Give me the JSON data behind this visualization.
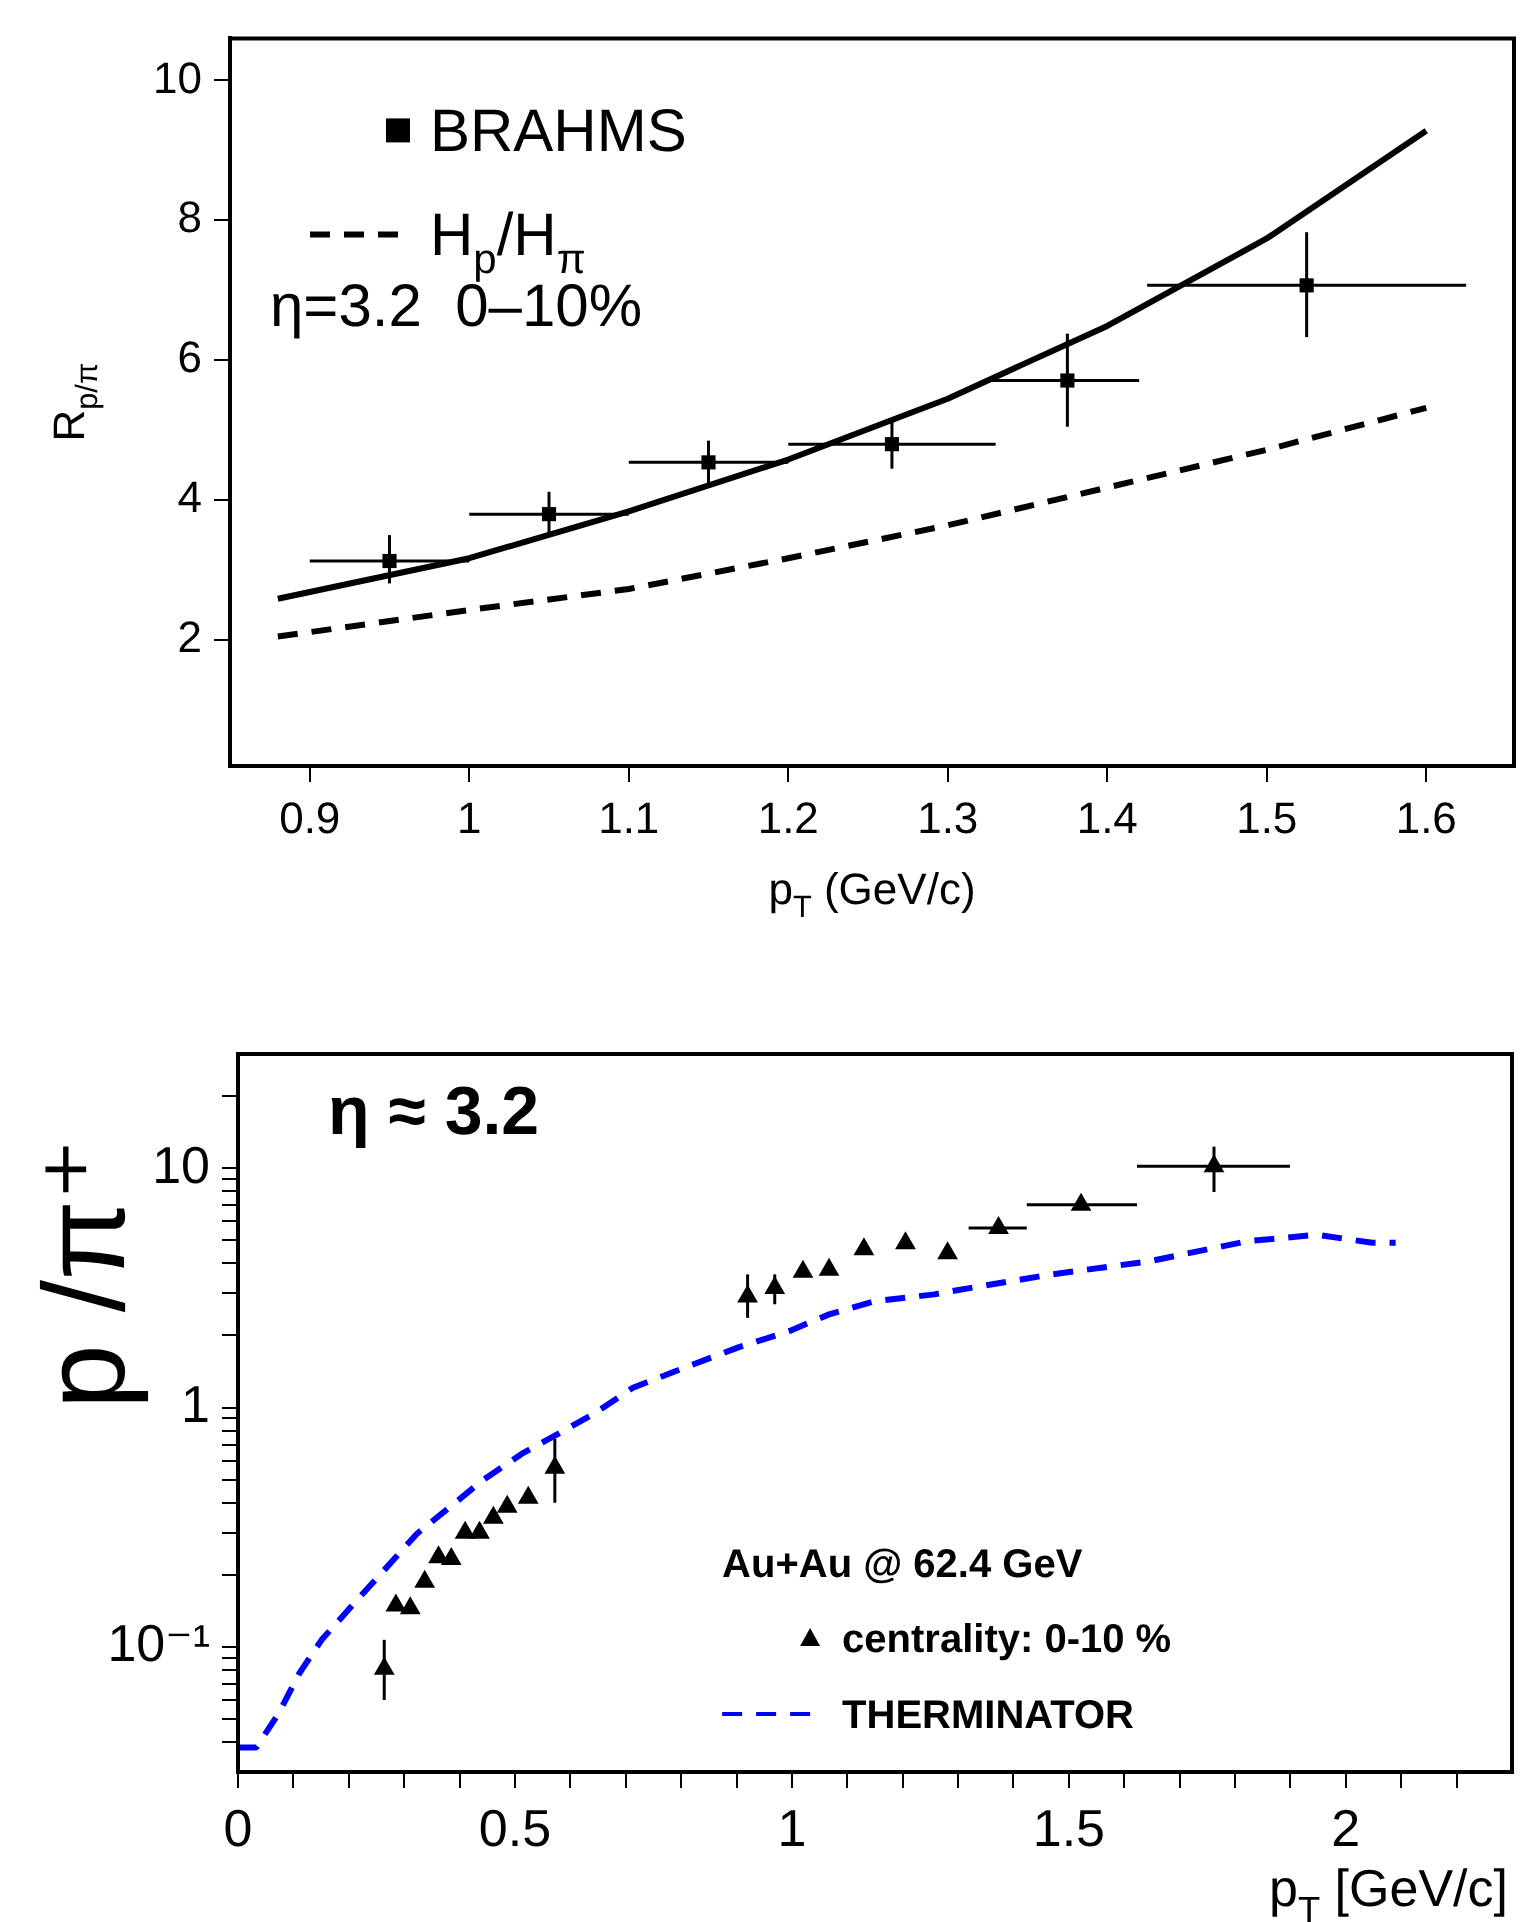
{
  "chart_data": [
    {
      "type": "scatter",
      "xlabel": "p$_{T}$ (GeV/c)",
      "ylabel": "R$_{p/π}$",
      "xlim": [
        0.85,
        1.655
      ],
      "ylim": [
        0.2,
        10.6
      ],
      "xticks": [
        0.9,
        1,
        1.1,
        1.2,
        1.3,
        1.4,
        1.5,
        1.6
      ],
      "yticks": [
        2,
        4,
        6,
        8,
        10
      ],
      "legend": "top left",
      "annotations": [
        "η=3.2  0–10%"
      ],
      "series": [
        {
          "name": "BRAHMS",
          "marker": "square",
          "color": "#000000",
          "x": [
            0.95,
            1.05,
            1.15,
            1.265,
            1.375,
            1.525
          ],
          "values": [
            3.13,
            3.8,
            4.54,
            4.8,
            5.71,
            7.07
          ],
          "errors": [
            [
              2.81,
              3.5
            ],
            [
              3.5,
              4.12
            ],
            [
              4.23,
              4.85
            ],
            [
              4.45,
              5.12
            ],
            [
              5.05,
              6.38
            ],
            [
              6.33,
              7.83
            ]
          ],
          "xerrors": [
            [
              0.9,
              1.0
            ],
            [
              1.0,
              1.1
            ],
            [
              1.1,
              1.2
            ],
            [
              1.2,
              1.33
            ],
            [
              1.325,
              1.42
            ],
            [
              1.425,
              1.625
            ]
          ]
        },
        {
          "type": "line",
          "marker": "none",
          "line_style": "solid",
          "color": "#000000",
          "x": [
            0.88,
            1.0,
            1.1,
            1.2,
            1.3,
            1.4,
            1.5,
            1.6
          ],
          "values": [
            2.59,
            3.17,
            3.84,
            4.58,
            5.45,
            6.49,
            7.74,
            9.28
          ]
        },
        {
          "name": "H$_{p}$/H$_{π}$",
          "type": "line",
          "marker": "none",
          "line_style": "dashed",
          "color": "#000000",
          "x": [
            0.88,
            1.0,
            1.1,
            1.2,
            1.3,
            1.4,
            1.5,
            1.6
          ],
          "values": [
            2.05,
            2.43,
            2.73,
            3.17,
            3.64,
            4.18,
            4.72,
            5.32
          ]
        }
      ]
    },
    {
      "type": "scatter",
      "xlabel": "p$_{T}$ [GeV/c]",
      "ylabel": "p /π⁺",
      "log": "y",
      "xlim": [
        0,
        2.3
      ],
      "ylim": [
        0.03,
        30
      ],
      "xticks": [
        0,
        {
          "value": 0.1,
          "label": null
        },
        {
          "value": 0.2,
          "label": null
        },
        {
          "value": 0.3,
          "label": null
        },
        {
          "value": 0.4,
          "label": null
        },
        0.5,
        {
          "value": 0.6,
          "label": null
        },
        {
          "value": 0.7,
          "label": null
        },
        {
          "value": 0.8,
          "label": null
        },
        {
          "value": 0.9,
          "label": null
        },
        1,
        {
          "value": 1.1,
          "label": null
        },
        {
          "value": 1.2,
          "label": null
        },
        {
          "value": 1.3,
          "label": null
        },
        {
          "value": 1.4,
          "label": null
        },
        1.5,
        {
          "value": 1.6,
          "label": null
        },
        {
          "value": 1.7,
          "label": null
        },
        {
          "value": 1.8,
          "label": null
        },
        {
          "value": 1.9,
          "label": null
        },
        2,
        {
          "value": 2.1,
          "label": null
        },
        {
          "value": 2.2,
          "label": null
        }
      ],
      "yticks": [
        {
          "value": 0.04,
          "label": null
        },
        {
          "value": 0.05,
          "label": null
        },
        {
          "value": 0.06,
          "label": null
        },
        {
          "value": 0.07,
          "label": null
        },
        {
          "value": 0.08,
          "label": null
        },
        {
          "value": 0.09,
          "label": null
        },
        {
          "value": 0.1,
          "label": "10⁻¹"
        },
        {
          "value": 0.2,
          "label": null
        },
        {
          "value": 0.3,
          "label": null
        },
        {
          "value": 0.4,
          "label": null
        },
        {
          "value": 0.5,
          "label": null
        },
        {
          "value": 0.6,
          "label": null
        },
        {
          "value": 0.7,
          "label": null
        },
        {
          "value": 0.8,
          "label": null
        },
        {
          "value": 0.9,
          "label": null
        },
        1,
        {
          "value": 2,
          "label": null
        },
        {
          "value": 3,
          "label": null
        },
        {
          "value": 4,
          "label": null
        },
        {
          "value": 5,
          "label": null
        },
        {
          "value": 6,
          "label": null
        },
        {
          "value": 7,
          "label": null
        },
        {
          "value": 8,
          "label": null
        },
        {
          "value": 9,
          "label": null
        },
        10,
        {
          "value": 20,
          "label": null
        }
      ],
      "legend": "bottom right",
      "legend_title": "Au+Au @ 62.4 GeV",
      "annotations": [
        "η ≈ 3.2"
      ],
      "series": [
        {
          "name": "centrality: 0-10 %",
          "marker": "triangle",
          "color": "#000000",
          "x": [
            0.264,
            0.285,
            0.311,
            0.337,
            0.362,
            0.385,
            0.41,
            0.436,
            0.461,
            0.486,
            0.524,
            0.572,
            0.92,
            0.969,
            1.02,
            1.067,
            1.13,
            1.205,
            1.281,
            1.373,
            1.522,
            1.762
          ],
          "values": [
            0.081,
            0.149,
            0.145,
            0.187,
            0.237,
            0.233,
            0.3,
            0.3,
            0.346,
            0.385,
            0.42,
            0.56,
            2.91,
            3.16,
            3.69,
            3.76,
            4.58,
            4.86,
            4.41,
            5.62,
            7.03,
            10.2
          ],
          "errors": [
            [
              0.06,
              0.107
            ],
            null,
            null,
            null,
            null,
            null,
            null,
            null,
            null,
            null,
            null,
            [
              0.4,
              0.74
            ],
            [
              2.37,
              3.6
            ],
            [
              2.7,
              3.6
            ],
            null,
            null,
            null,
            null,
            null,
            null,
            null,
            [
              7.95,
              12.3
            ]
          ],
          "xerrors": [
            null,
            null,
            null,
            null,
            null,
            null,
            null,
            null,
            null,
            null,
            null,
            null,
            null,
            null,
            null,
            null,
            null,
            null,
            null,
            [
              1.319,
              1.424
            ],
            [
              1.424,
              1.623
            ],
            [
              1.623,
              1.899
            ]
          ]
        },
        {
          "name": "THERMINATOR",
          "type": "line",
          "marker": "none",
          "line_style": "dashed",
          "color": "#0000ff",
          "x": [
            0,
            0.033,
            0.074,
            0.11,
            0.151,
            0.204,
            0.258,
            0.323,
            0.382,
            0.441,
            0.512,
            0.577,
            0.642,
            0.713,
            0.807,
            0.902,
            0.996,
            1.067,
            1.15,
            1.257,
            1.287,
            1.465,
            1.644,
            1.822,
            1.947,
            2.048,
            2.09
          ],
          "values": [
            0.038,
            0.038,
            0.053,
            0.077,
            0.107,
            0.147,
            0.202,
            0.297,
            0.383,
            0.495,
            0.64,
            0.774,
            0.94,
            1.21,
            1.47,
            1.78,
            2.09,
            2.45,
            2.78,
            2.97,
            3.06,
            3.59,
            4.08,
            4.95,
            5.27,
            4.88,
            4.88
          ]
        }
      ]
    }
  ]
}
